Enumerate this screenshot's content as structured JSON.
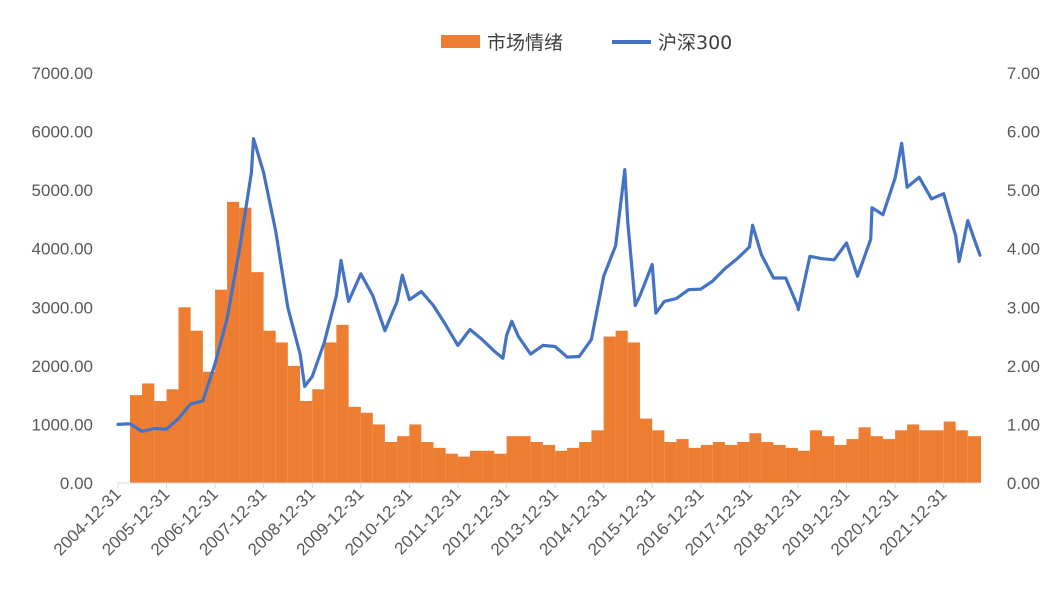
{
  "chart_data": {
    "type": "bar+line",
    "title": "",
    "legend": {
      "placement": "top-center",
      "entries": [
        {
          "name": "市场情绪",
          "type": "bar",
          "color": "#ED7D31"
        },
        {
          "name": "沪深300",
          "type": "line",
          "color": "#4472C4"
        }
      ]
    },
    "y_left": {
      "min": 0,
      "max": 7000,
      "ticks": [
        "0.00",
        "1000.00",
        "2000.00",
        "3000.00",
        "4000.00",
        "5000.00",
        "6000.00",
        "7000.00"
      ]
    },
    "y_right": {
      "min": 0,
      "max": 7,
      "ticks": [
        "0.00",
        "1.00",
        "2.00",
        "3.00",
        "4.00",
        "5.00",
        "6.00",
        "7.00"
      ]
    },
    "x_ticks": [
      "2004-12-31",
      "2005-12-31",
      "2006-12-31",
      "2007-12-31",
      "2008-12-31",
      "2009-12-31",
      "2010-12-31",
      "2011-12-31",
      "2012-12-31",
      "2013-12-31",
      "2014-12-31",
      "2015-12-31",
      "2016-12-31",
      "2017-12-31",
      "2018-12-31",
      "2019-12-31",
      "2020-12-31",
      "2021-12-31"
    ],
    "x_range": [
      "2004-12-31",
      "2022-09-30"
    ],
    "grid": false,
    "series": [
      {
        "name": "沪深300",
        "axis": "left",
        "x": [
          "2004-12-31",
          "2005-03-31",
          "2005-06-30",
          "2005-09-30",
          "2005-12-31",
          "2006-03-31",
          "2006-06-30",
          "2006-09-30",
          "2006-12-31",
          "2007-03-31",
          "2007-06-30",
          "2007-09-30",
          "2007-10-16",
          "2007-12-31",
          "2008-03-31",
          "2008-06-30",
          "2008-09-30",
          "2008-11-04",
          "2008-12-31",
          "2009-03-31",
          "2009-06-30",
          "2009-08-04",
          "2009-09-30",
          "2009-12-31",
          "2010-03-31",
          "2010-06-30",
          "2010-09-30",
          "2010-11-08",
          "2010-12-31",
          "2011-03-31",
          "2011-06-30",
          "2011-09-30",
          "2011-12-31",
          "2012-03-31",
          "2012-06-30",
          "2012-09-30",
          "2012-12-03",
          "2012-12-31",
          "2013-02-08",
          "2013-03-31",
          "2013-06-30",
          "2013-09-30",
          "2013-12-31",
          "2014-03-31",
          "2014-06-30",
          "2014-09-30",
          "2014-12-31",
          "2015-03-31",
          "2015-06-08",
          "2015-06-30",
          "2015-08-26",
          "2015-09-30",
          "2015-12-31",
          "2016-01-28",
          "2016-03-31",
          "2016-06-30",
          "2016-09-30",
          "2016-12-31",
          "2017-03-31",
          "2017-06-30",
          "2017-09-30",
          "2017-12-31",
          "2018-01-24",
          "2018-03-31",
          "2018-06-30",
          "2018-09-30",
          "2018-12-31",
          "2019-01-03",
          "2019-03-31",
          "2019-06-30",
          "2019-09-30",
          "2019-12-31",
          "2020-03-23",
          "2020-06-30",
          "2020-07-10",
          "2020-09-30",
          "2020-12-31",
          "2021-02-18",
          "2021-03-31",
          "2021-06-30",
          "2021-09-30",
          "2021-12-31",
          "2022-03-31",
          "2022-04-26",
          "2022-06-30",
          "2022-08-15",
          "2022-09-30"
        ],
        "y": [
          1000,
          1010,
          880,
          930,
          920,
          1100,
          1350,
          1400,
          2040,
          2800,
          3950,
          5300,
          5880,
          5300,
          4300,
          3000,
          2200,
          1650,
          1820,
          2400,
          3200,
          3800,
          3100,
          3570,
          3200,
          2600,
          3100,
          3550,
          3130,
          3270,
          3030,
          2700,
          2350,
          2620,
          2450,
          2250,
          2130,
          2520,
          2760,
          2500,
          2200,
          2350,
          2330,
          2150,
          2160,
          2450,
          3530,
          4050,
          5350,
          4470,
          3030,
          3200,
          3730,
          2900,
          3100,
          3150,
          3300,
          3310,
          3450,
          3660,
          3830,
          4030,
          4400,
          3900,
          3500,
          3500,
          3010,
          2960,
          3870,
          3830,
          3810,
          4100,
          3530,
          4160,
          4700,
          4580,
          5210,
          5800,
          5050,
          5220,
          4850,
          4940,
          4220,
          3780,
          4480,
          4180,
          3890
        ]
      },
      {
        "name": "市场情绪",
        "axis": "left",
        "x": [
          "2005-03-31",
          "2005-06-30",
          "2005-09-30",
          "2005-12-31",
          "2006-03-31",
          "2006-06-30",
          "2006-09-30",
          "2006-12-31",
          "2007-03-31",
          "2007-06-30",
          "2007-09-30",
          "2007-12-31",
          "2008-03-31",
          "2008-06-30",
          "2008-09-30",
          "2008-12-31",
          "2009-03-31",
          "2009-06-30",
          "2009-09-30",
          "2009-12-31",
          "2010-03-31",
          "2010-06-30",
          "2010-09-30",
          "2010-12-31",
          "2011-03-31",
          "2011-06-30",
          "2011-09-30",
          "2011-12-31",
          "2012-03-31",
          "2012-06-30",
          "2012-09-30",
          "2012-12-31",
          "2013-03-31",
          "2013-06-30",
          "2013-09-30",
          "2013-12-31",
          "2014-03-31",
          "2014-06-30",
          "2014-09-30",
          "2014-12-31",
          "2015-03-31",
          "2015-06-30",
          "2015-09-30",
          "2015-12-31",
          "2016-03-31",
          "2016-06-30",
          "2016-09-30",
          "2016-12-31",
          "2017-03-31",
          "2017-06-30",
          "2017-09-30",
          "2017-12-31",
          "2018-03-31",
          "2018-06-30",
          "2018-09-30",
          "2018-12-31",
          "2019-03-31",
          "2019-06-30",
          "2019-09-30",
          "2019-12-31",
          "2020-03-31",
          "2020-06-30",
          "2020-09-30",
          "2020-12-31",
          "2021-03-31",
          "2021-06-30",
          "2021-09-30",
          "2021-12-31",
          "2022-03-31",
          "2022-06-30",
          "2022-09-30"
        ],
        "y": [
          1500,
          1700,
          1400,
          1600,
          3000,
          2600,
          1900,
          3300,
          4800,
          4700,
          3600,
          2600,
          2400,
          2000,
          1400,
          1600,
          2400,
          2700,
          1300,
          1200,
          1000,
          700,
          800,
          1000,
          700,
          600,
          500,
          450,
          550,
          550,
          500,
          800,
          800,
          700,
          650,
          550,
          600,
          700,
          900,
          2500,
          2600,
          2400,
          1100,
          900,
          700,
          750,
          600,
          650,
          700,
          650,
          700,
          850,
          700,
          650,
          600,
          550,
          900,
          800,
          650,
          750,
          950,
          800,
          750,
          900,
          1000,
          900,
          900,
          1050,
          900,
          800,
          800
        ]
      }
    ]
  }
}
